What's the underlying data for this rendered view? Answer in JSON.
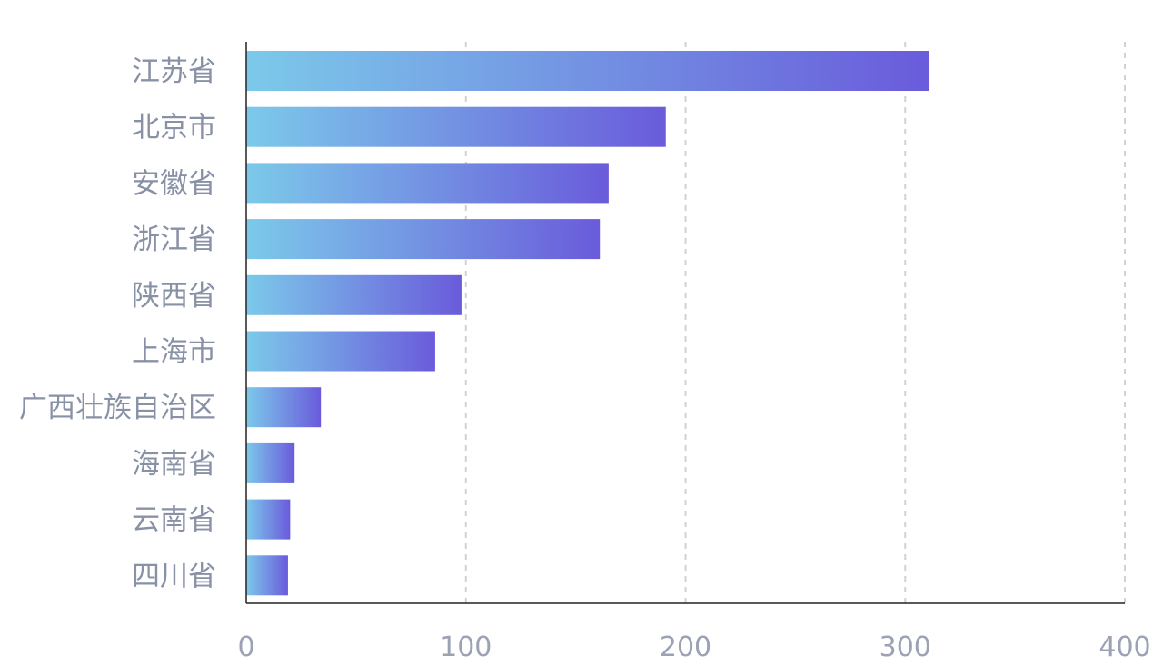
{
  "chart_data": {
    "type": "bar",
    "orientation": "horizontal",
    "categories": [
      "江苏省",
      "北京市",
      "安徽省",
      "浙江省",
      "陕西省",
      "上海市",
      "广西壮族自治区",
      "海南省",
      "云南省",
      "四川省"
    ],
    "values": [
      311,
      191,
      165,
      161,
      98,
      86,
      34,
      22,
      20,
      19
    ],
    "xlim": [
      0,
      400
    ],
    "xticks": [
      "0",
      "100",
      "200",
      "300",
      "400"
    ],
    "grid": "vertical-dashed",
    "legend": "none",
    "colors": {
      "bar_gradient_start": "#7cc9ea",
      "bar_gradient_end": "#6a5bdb",
      "grid": "#d2d2d2",
      "axis": "#222222",
      "label": "#8891a6"
    }
  }
}
